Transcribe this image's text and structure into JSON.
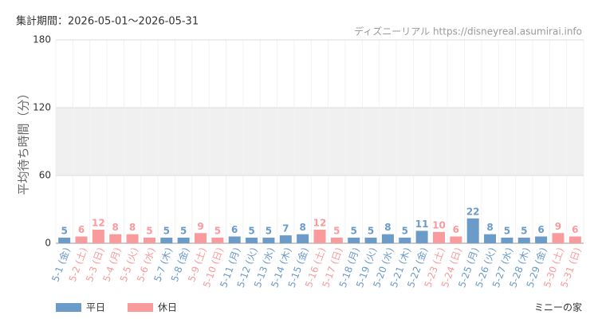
{
  "chart_data": {
    "type": "bar",
    "title": "集計期間：2026-05-01～2026-05-31",
    "source": "ディズニーリアル https://disneyreal.asumirai.info",
    "ylabel": "平均待ち時間（分）",
    "footer": "ミニーの家",
    "categories": [
      "5-1 (金)",
      "5-2 (土)",
      "5-3 (日)",
      "5-4 (月)",
      "5-5 (火)",
      "5-6 (水)",
      "5-7 (木)",
      "5-8 (金)",
      "5-9 (土)",
      "5-10 (日)",
      "5-11 (月)",
      "5-12 (火)",
      "5-13 (水)",
      "5-14 (木)",
      "5-15 (金)",
      "5-16 (土)",
      "5-17 (日)",
      "5-18 (月)",
      "5-19 (火)",
      "5-20 (水)",
      "5-21 (木)",
      "5-22 (金)",
      "5-23 (土)",
      "5-24 (日)",
      "5-25 (月)",
      "5-26 (火)",
      "5-27 (水)",
      "5-28 (木)",
      "5-29 (金)",
      "5-30 (土)",
      "5-31 (日)"
    ],
    "series": [
      {
        "name": "平日",
        "color": "#6b9bc8",
        "values": [
          5,
          null,
          null,
          null,
          null,
          null,
          5,
          5,
          null,
          null,
          6,
          5,
          5,
          7,
          8,
          null,
          null,
          5,
          5,
          8,
          5,
          11,
          null,
          null,
          22,
          8,
          5,
          5,
          6,
          null,
          null
        ]
      },
      {
        "name": "休日",
        "color": "#f99a9c",
        "values": [
          null,
          6,
          12,
          8,
          8,
          5,
          null,
          null,
          9,
          5,
          null,
          null,
          null,
          null,
          null,
          12,
          5,
          null,
          null,
          null,
          null,
          null,
          10,
          6,
          null,
          null,
          null,
          null,
          null,
          9,
          6
        ]
      }
    ],
    "ylim": [
      0,
      180
    ],
    "yticks": [
      0,
      60,
      120,
      180
    ],
    "shaded_band": [
      60,
      120
    ],
    "grid": true
  }
}
